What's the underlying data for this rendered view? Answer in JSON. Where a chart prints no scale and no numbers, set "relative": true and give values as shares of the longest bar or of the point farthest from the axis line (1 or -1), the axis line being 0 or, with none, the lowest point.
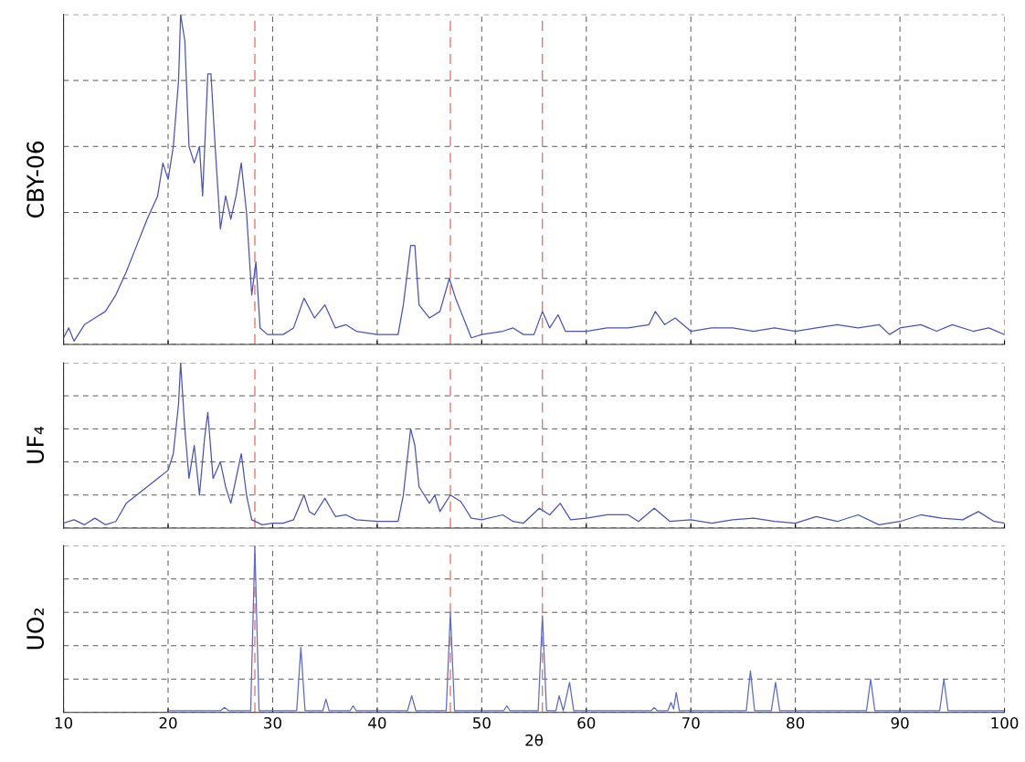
{
  "chart_data": [
    {
      "type": "line",
      "ylabel": "CBY-06",
      "relative": true,
      "xlim": [
        10,
        100
      ],
      "xticks": [
        10,
        20,
        30,
        40,
        50,
        60,
        70,
        80,
        90,
        100
      ],
      "tick_labels": false,
      "grid": true,
      "ref_lines": [
        {
          "axis": "x",
          "value": 28.3,
          "color": "#e87a6a",
          "line_style": "dashed"
        },
        {
          "axis": "x",
          "value": 47.0,
          "color": "#e87a6a",
          "line_style": "dashed"
        },
        {
          "axis": "x",
          "value": 55.8,
          "color": "#e87a6a",
          "line_style": "dashed"
        }
      ],
      "series": [
        {
          "color": "#4a52c0",
          "x": [
            10,
            10.5,
            11,
            12,
            13,
            14,
            15,
            16,
            17,
            18,
            19,
            19.5,
            20,
            20.5,
            21,
            21.2,
            21.6,
            22,
            22.5,
            23,
            23.3,
            23.8,
            24.1,
            24.5,
            25,
            25.5,
            26,
            26.5,
            27,
            27.5,
            28,
            28.4,
            28.8,
            29.5,
            31,
            32,
            33,
            34,
            35,
            36,
            37,
            38,
            40,
            42,
            42.5,
            43.2,
            43.6,
            44,
            45,
            46,
            46.9,
            47.5,
            48,
            49,
            50,
            52,
            53,
            54,
            55,
            55.8,
            56.5,
            57.3,
            58,
            60,
            62,
            64,
            66,
            66.6,
            67.5,
            68.5,
            70,
            72,
            74,
            76,
            78,
            80,
            82,
            84,
            86,
            88,
            89,
            90,
            92,
            93.5,
            95,
            97,
            98.5,
            100
          ],
          "values": [
            0.02,
            0.05,
            0.01,
            0.06,
            0.08,
            0.1,
            0.15,
            0.22,
            0.3,
            0.38,
            0.45,
            0.55,
            0.5,
            0.6,
            0.8,
            1.0,
            0.92,
            0.6,
            0.55,
            0.6,
            0.45,
            0.82,
            0.82,
            0.6,
            0.35,
            0.45,
            0.38,
            0.45,
            0.55,
            0.4,
            0.15,
            0.25,
            0.05,
            0.03,
            0.03,
            0.05,
            0.14,
            0.08,
            0.12,
            0.05,
            0.06,
            0.04,
            0.03,
            0.03,
            0.12,
            0.3,
            0.3,
            0.12,
            0.08,
            0.1,
            0.2,
            0.14,
            0.1,
            0.02,
            0.03,
            0.04,
            0.05,
            0.03,
            0.03,
            0.1,
            0.05,
            0.09,
            0.04,
            0.04,
            0.05,
            0.05,
            0.06,
            0.1,
            0.06,
            0.08,
            0.04,
            0.05,
            0.05,
            0.04,
            0.05,
            0.04,
            0.05,
            0.06,
            0.05,
            0.06,
            0.03,
            0.05,
            0.06,
            0.04,
            0.06,
            0.04,
            0.05,
            0.03
          ]
        }
      ]
    },
    {
      "type": "line",
      "ylabel": "UF₄",
      "relative": true,
      "xlim": [
        10,
        100
      ],
      "xticks": [
        10,
        20,
        30,
        40,
        50,
        60,
        70,
        80,
        90,
        100
      ],
      "tick_labels": false,
      "grid": true,
      "ref_lines": [
        {
          "axis": "x",
          "value": 28.3,
          "color": "#e87a6a",
          "line_style": "dashed"
        },
        {
          "axis": "x",
          "value": 47.0,
          "color": "#e87a6a",
          "line_style": "dashed"
        },
        {
          "axis": "x",
          "value": 55.8,
          "color": "#e87a6a",
          "line_style": "dashed"
        }
      ],
      "series": [
        {
          "color": "#4a52c0",
          "x": [
            10,
            11,
            12,
            13,
            14,
            15,
            16,
            17,
            18,
            19,
            20,
            20.5,
            21,
            21.2,
            21.6,
            22,
            22.5,
            23,
            23.5,
            23.8,
            24.3,
            25,
            25.5,
            26,
            26.5,
            27,
            27.5,
            28,
            29,
            30,
            31,
            32,
            33,
            33.5,
            34,
            35,
            36,
            37,
            38,
            40,
            42,
            42.5,
            43.2,
            43.6,
            44,
            45,
            45.5,
            46,
            47,
            48,
            49,
            50,
            52,
            53,
            54,
            55.5,
            56.5,
            57.5,
            58.5,
            60,
            62,
            64,
            65,
            66.5,
            68,
            70,
            72,
            74,
            76,
            78,
            80,
            82,
            84,
            86,
            88,
            90,
            92,
            94,
            96,
            97.5,
            99,
            100
          ],
          "values": [
            0.03,
            0.05,
            0.02,
            0.06,
            0.02,
            0.04,
            0.15,
            0.2,
            0.25,
            0.3,
            0.35,
            0.45,
            0.75,
            1.0,
            0.6,
            0.3,
            0.5,
            0.2,
            0.55,
            0.7,
            0.3,
            0.4,
            0.25,
            0.15,
            0.3,
            0.45,
            0.2,
            0.05,
            0.02,
            0.03,
            0.03,
            0.05,
            0.2,
            0.1,
            0.08,
            0.18,
            0.07,
            0.08,
            0.05,
            0.04,
            0.04,
            0.2,
            0.6,
            0.5,
            0.25,
            0.15,
            0.2,
            0.1,
            0.2,
            0.16,
            0.06,
            0.05,
            0.08,
            0.04,
            0.03,
            0.12,
            0.08,
            0.15,
            0.05,
            0.06,
            0.08,
            0.08,
            0.04,
            0.12,
            0.04,
            0.05,
            0.03,
            0.05,
            0.06,
            0.04,
            0.03,
            0.07,
            0.04,
            0.08,
            0.02,
            0.04,
            0.08,
            0.06,
            0.05,
            0.1,
            0.04,
            0.03
          ]
        }
      ]
    },
    {
      "type": "line",
      "ylabel": "UO₂",
      "xlabel": "2θ",
      "relative": true,
      "xlim": [
        10,
        100
      ],
      "xticks": [
        10,
        20,
        30,
        40,
        50,
        60,
        70,
        80,
        90,
        100
      ],
      "tick_labels": "x",
      "grid": true,
      "ref_lines": [
        {
          "axis": "x",
          "value": 28.3,
          "color": "#e87a6a",
          "line_style": "dashed"
        },
        {
          "axis": "x",
          "value": 47.0,
          "color": "#e87a6a",
          "line_style": "dashed"
        },
        {
          "axis": "x",
          "value": 55.8,
          "color": "#e87a6a",
          "line_style": "dashed"
        }
      ],
      "series": [
        {
          "color": "#5a6ad0",
          "x": [
            20,
            25.0,
            25.4,
            25.8,
            27.9,
            28.3,
            28.7,
            32.3,
            32.7,
            33.1,
            34.8,
            35.1,
            35.4,
            37.4,
            37.7,
            38.0,
            42.9,
            43.3,
            43.7,
            46.6,
            47.0,
            47.4,
            52.1,
            52.4,
            52.7,
            55.4,
            55.8,
            56.2,
            57.1,
            57.4,
            57.8,
            58.4,
            58.8,
            66.2,
            66.5,
            66.8,
            67.8,
            68.1,
            68.35,
            68.6,
            68.9,
            75.3,
            75.7,
            76.1,
            77.7,
            78.1,
            78.5,
            86.8,
            87.2,
            87.6,
            93.8,
            94.2,
            94.6,
            100
          ],
          "values": [
            0.01,
            0.01,
            0.03,
            0.01,
            0.01,
            1.0,
            0.01,
            0.01,
            0.39,
            0.01,
            0.01,
            0.08,
            0.01,
            0.01,
            0.04,
            0.01,
            0.01,
            0.1,
            0.01,
            0.01,
            0.6,
            0.01,
            0.01,
            0.04,
            0.01,
            0.01,
            0.58,
            0.01,
            0.01,
            0.1,
            0.01,
            0.18,
            0.01,
            0.01,
            0.03,
            0.01,
            0.01,
            0.06,
            0.02,
            0.12,
            0.01,
            0.01,
            0.25,
            0.01,
            0.01,
            0.18,
            0.01,
            0.01,
            0.2,
            0.01,
            0.01,
            0.2,
            0.01,
            0.01
          ]
        }
      ]
    }
  ]
}
